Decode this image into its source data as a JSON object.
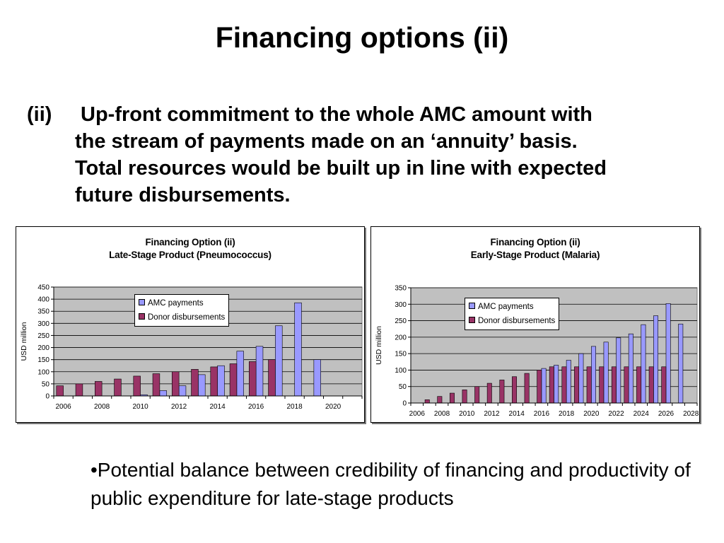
{
  "slide": {
    "title": "Financing options (ii)",
    "point_marker": "(ii)",
    "point_lines": [
      "Up-front commitment to the whole AMC amount with",
      "the stream of payments made on an ‘annuity’ basis.",
      "Total resources would be built up in line with expected",
      "future disbursements."
    ],
    "bullet": "•Potential balance between credibility of financing and productivity of public expenditure for late-stage products"
  },
  "colors": {
    "amc": "#9999ff",
    "donor": "#993366",
    "plot_bg": "#c0c0c0",
    "grid": "#000000"
  },
  "chart_data": [
    {
      "type": "bar",
      "title_lines": [
        "Financing Option (ii)",
        "Late-Stage Product (Pneumococcus)"
      ],
      "ylabel": "USD million",
      "ylim": [
        0,
        450
      ],
      "yticks": [
        0,
        50,
        100,
        150,
        200,
        250,
        300,
        350,
        400,
        450
      ],
      "x": [
        2006,
        2007,
        2008,
        2009,
        2010,
        2011,
        2012,
        2013,
        2014,
        2015,
        2016,
        2017,
        2018,
        2019,
        2020,
        2021
      ],
      "xticks": [
        "2006",
        "2008",
        "2010",
        "2012",
        "2014",
        "2016",
        "2018",
        "2020"
      ],
      "series": [
        {
          "name": "AMC payments",
          "values": [
            0,
            0,
            0,
            0,
            5,
            22,
            42,
            88,
            125,
            185,
            205,
            290,
            385,
            150,
            0,
            0
          ]
        },
        {
          "name": "Donor disbursements",
          "values": [
            42,
            50,
            60,
            70,
            82,
            92,
            100,
            110,
            120,
            133,
            142,
            150,
            0,
            0,
            0,
            0
          ]
        }
      ],
      "legend": "inside-top"
    },
    {
      "type": "bar",
      "title_lines": [
        "Financing Option (ii)",
        "Early-Stage Product (Malaria)"
      ],
      "ylabel": "USD million",
      "ylim": [
        0,
        350
      ],
      "yticks": [
        0,
        50,
        100,
        150,
        200,
        250,
        300,
        350
      ],
      "x": [
        2006,
        2007,
        2008,
        2009,
        2010,
        2011,
        2012,
        2013,
        2014,
        2015,
        2016,
        2017,
        2018,
        2019,
        2020,
        2021,
        2022,
        2023,
        2024,
        2025,
        2026,
        2027,
        2028
      ],
      "xticks": [
        "2006",
        "2008",
        "2010",
        "2012",
        "2014",
        "2016",
        "2018",
        "2020",
        "2022",
        "2024",
        "2026",
        "2028"
      ],
      "series": [
        {
          "name": "AMC payments",
          "values": [
            0,
            0,
            0,
            0,
            0,
            0,
            0,
            0,
            0,
            0,
            105,
            115,
            130,
            150,
            172,
            185,
            198,
            210,
            238,
            265,
            302,
            240,
            0
          ]
        },
        {
          "name": "Donor disbursements",
          "values": [
            0,
            10,
            20,
            30,
            40,
            50,
            60,
            70,
            80,
            90,
            100,
            110,
            110,
            110,
            110,
            110,
            110,
            110,
            110,
            110,
            110,
            0,
            0
          ]
        }
      ],
      "legend": "inside-top"
    }
  ]
}
